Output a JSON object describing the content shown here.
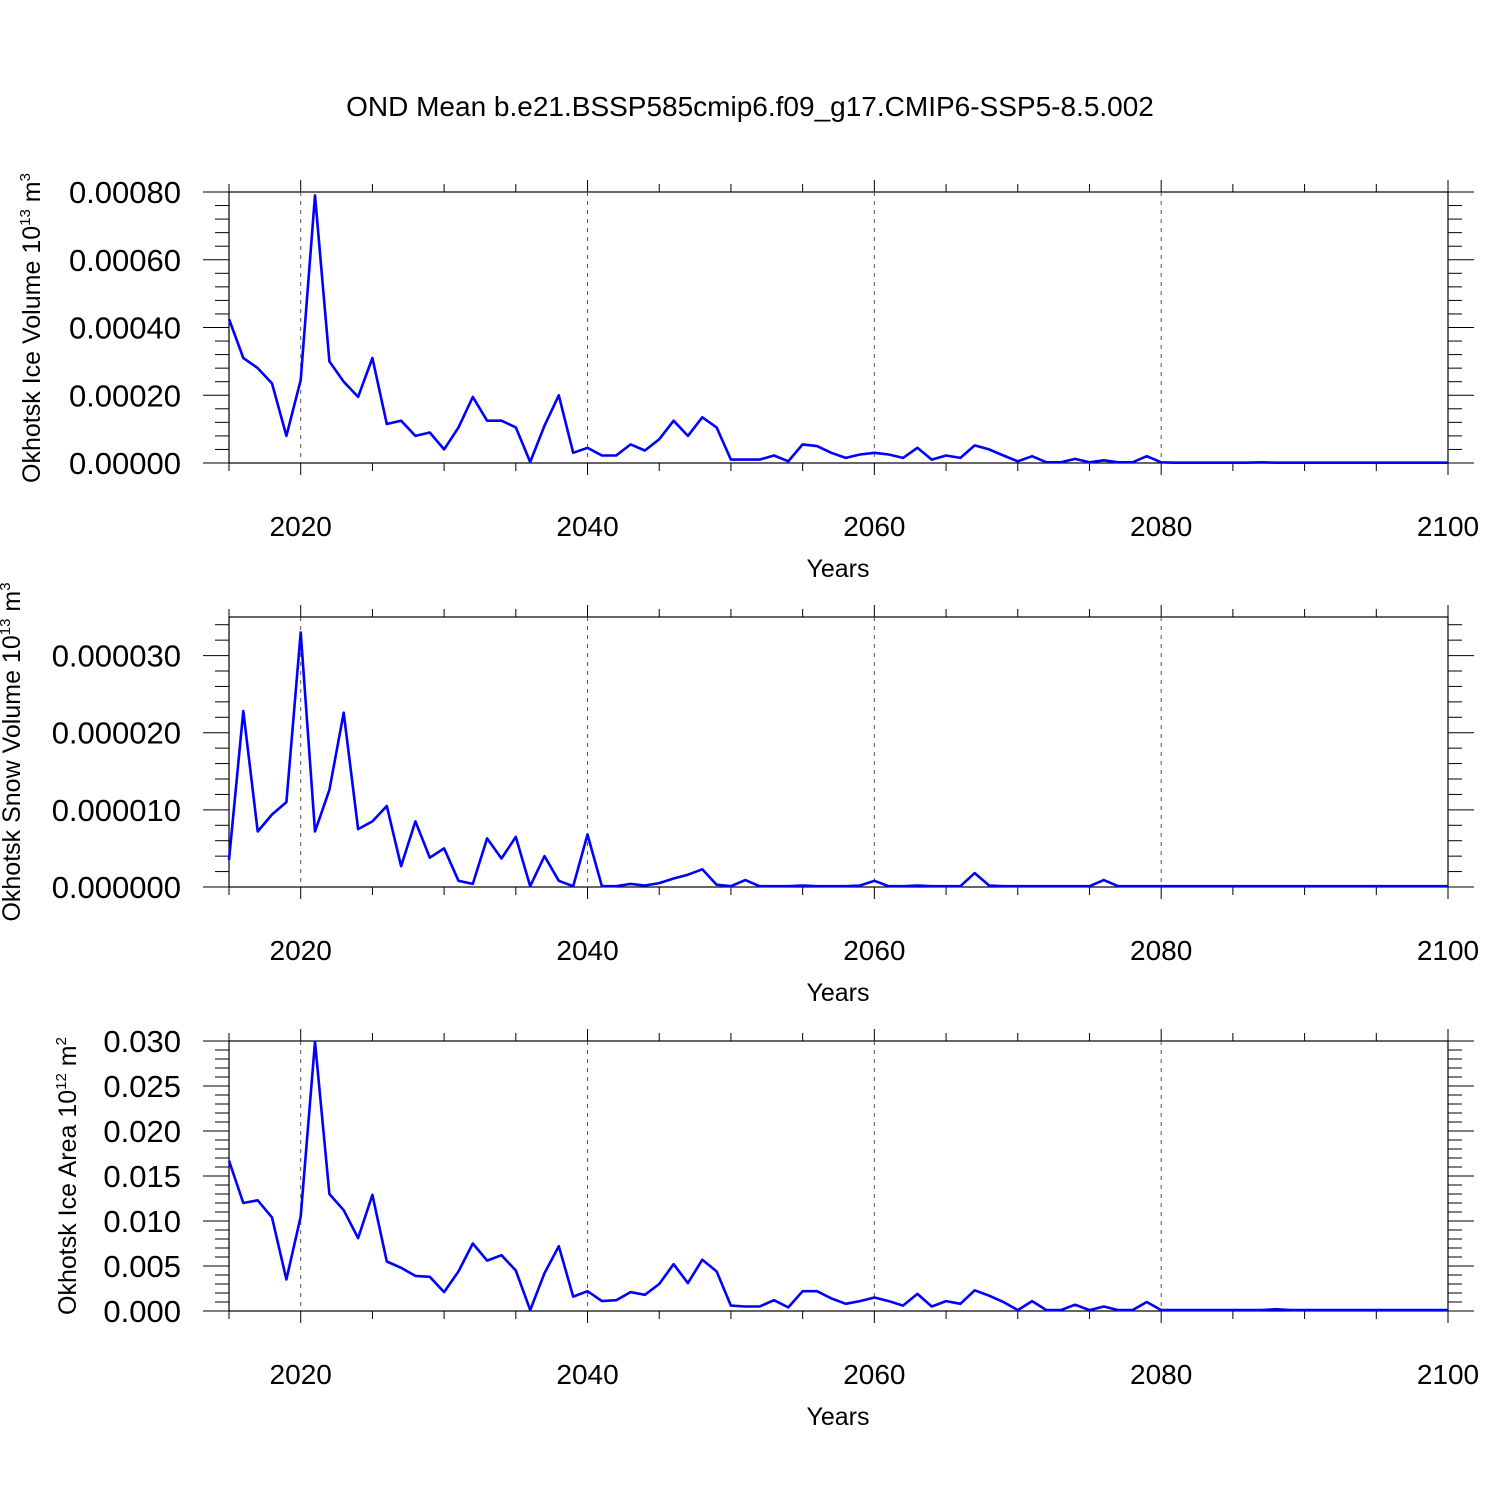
{
  "title": "OND Mean b.e21.BSSP585cmip6.f09_g17.CMIP6-SSP5-8.5.002",
  "line_color": "#0000ff",
  "chart_data": [
    {
      "type": "line",
      "name": "ice-volume",
      "ylabel_main": "Okhotsk Ice Volume 10",
      "ylabel_exp": "13",
      "ylabel_unit": " m",
      "ylabel_unit_exp": "3",
      "xlabel": "Years",
      "xlim": [
        2015,
        2100
      ],
      "ylim": [
        0,
        0.0008
      ],
      "x_ticks": [
        "2020",
        "2040",
        "2060",
        "2080",
        "2100"
      ],
      "y_ticks": [
        {
          "value": 0.0,
          "label": "0.00000"
        },
        {
          "value": 0.0002,
          "label": "0.00020"
        },
        {
          "value": 0.0004,
          "label": "0.00040"
        },
        {
          "value": 0.0006,
          "label": "0.00060"
        },
        {
          "value": 0.0008,
          "label": "0.00080"
        }
      ],
      "gridlines_x": [
        2020,
        2040,
        2060,
        2080
      ],
      "x_start": 2015,
      "values": [
        0.000425,
        0.00031,
        0.00028,
        0.000235,
        8e-05,
        0.000245,
        0.00079,
        0.0003,
        0.00024,
        0.000195,
        0.00031,
        0.000115,
        0.000125,
        8e-05,
        9e-05,
        4e-05,
        0.000105,
        0.000195,
        0.000125,
        0.000125,
        0.000105,
        3e-06,
        0.00011,
        0.0002,
        3e-05,
        4.5e-05,
        2.2e-05,
        2.2e-05,
        5.5e-05,
        3.7e-05,
        7e-05,
        0.000125,
        8e-05,
        0.000135,
        0.000105,
        1e-05,
        1e-05,
        1e-05,
        2.2e-05,
        5e-06,
        5.5e-05,
        5e-05,
        3e-05,
        1.5e-05,
        2.5e-05,
        3e-05,
        2.5e-05,
        1.5e-05,
        4.5e-05,
        1e-05,
        2.2e-05,
        1.5e-05,
        5.2e-05,
        4e-05,
        2.2e-05,
        5e-06,
        2e-05,
        2e-06,
        2e-06,
        1.2e-05,
        2e-06,
        8e-06,
        2e-06,
        2e-06,
        2e-05,
        2e-06,
        1e-06,
        1e-06,
        1e-06,
        1e-06,
        1e-06,
        1e-06,
        2e-06,
        1e-06,
        1e-06,
        1e-06,
        1e-06,
        1e-06,
        1e-06,
        1e-06,
        1e-06,
        1e-06,
        1e-06,
        1e-06,
        1e-06,
        1e-06
      ]
    },
    {
      "type": "line",
      "name": "snow-volume",
      "ylabel_main": "Okhotsk Snow Volume 10",
      "ylabel_exp": "13",
      "ylabel_unit": " m",
      "ylabel_unit_exp": "3",
      "xlabel": "Years",
      "xlim": [
        2015,
        2100
      ],
      "ylim": [
        0,
        3.5e-05
      ],
      "x_ticks": [
        "2020",
        "2040",
        "2060",
        "2080",
        "2100"
      ],
      "y_ticks": [
        {
          "value": 0.0,
          "label": "0.000000"
        },
        {
          "value": 1e-05,
          "label": "0.000010"
        },
        {
          "value": 2e-05,
          "label": "0.000020"
        },
        {
          "value": 3e-05,
          "label": "0.000030"
        }
      ],
      "gridlines_x": [
        2020,
        2040,
        2060,
        2080
      ],
      "x_start": 2015,
      "values": [
        3.5e-06,
        2.28e-05,
        7.2e-06,
        9.4e-06,
        1.1e-05,
        3.3e-05,
        7.2e-06,
        1.26e-05,
        2.26e-05,
        7.5e-06,
        8.5e-06,
        1.05e-05,
        2.7e-06,
        8.5e-06,
        3.8e-06,
        5e-06,
        8e-07,
        4e-07,
        6.3e-06,
        3.7e-06,
        6.5e-06,
        1e-07,
        4e-06,
        8e-07,
        1e-07,
        6.8e-06,
        1e-07,
        1e-07,
        4e-07,
        2e-07,
        5e-07,
        1.1e-06,
        1.6e-06,
        2.3e-06,
        3e-07,
        1e-07,
        9e-07,
        1e-07,
        1e-07,
        1e-07,
        2e-07,
        1e-07,
        1e-07,
        1e-07,
        2e-07,
        8e-07,
        1e-07,
        1e-07,
        2e-07,
        1e-07,
        1e-07,
        1e-07,
        1.8e-06,
        2e-07,
        1e-07,
        1e-07,
        1e-07,
        1e-07,
        1e-07,
        1e-07,
        1e-07,
        9e-07,
        1e-07,
        1e-07,
        1e-07,
        1e-07,
        1e-07,
        1e-07,
        1e-07,
        1e-07,
        1e-07,
        1e-07,
        1e-07,
        1e-07,
        1e-07,
        1e-07,
        1e-07,
        1e-07,
        1e-07,
        1e-07,
        1e-07,
        1e-07,
        1e-07,
        1e-07,
        1e-07,
        1e-07
      ]
    },
    {
      "type": "line",
      "name": "ice-area",
      "ylabel_main": "Okhotsk Ice Area 10",
      "ylabel_exp": "12",
      "ylabel_unit": " m",
      "ylabel_unit_exp": "2",
      "xlabel": "Years",
      "xlim": [
        2015,
        2100
      ],
      "ylim": [
        0,
        0.03
      ],
      "x_ticks": [
        "2020",
        "2040",
        "2060",
        "2080",
        "2100"
      ],
      "y_ticks": [
        {
          "value": 0.0,
          "label": "0.000"
        },
        {
          "value": 0.005,
          "label": "0.005"
        },
        {
          "value": 0.01,
          "label": "0.010"
        },
        {
          "value": 0.015,
          "label": "0.015"
        },
        {
          "value": 0.02,
          "label": "0.020"
        },
        {
          "value": 0.025,
          "label": "0.025"
        },
        {
          "value": 0.03,
          "label": "0.030"
        }
      ],
      "gridlines_x": [
        2020,
        2040,
        2060,
        2080
      ],
      "x_start": 2015,
      "values": [
        0.0167,
        0.012,
        0.0123,
        0.0104,
        0.0035,
        0.0105,
        0.0299,
        0.013,
        0.0112,
        0.0081,
        0.0129,
        0.0055,
        0.0048,
        0.0039,
        0.0038,
        0.0021,
        0.0044,
        0.0075,
        0.0056,
        0.0062,
        0.0045,
        0.0001,
        0.0042,
        0.0072,
        0.0016,
        0.0022,
        0.0011,
        0.0012,
        0.0021,
        0.0018,
        0.003,
        0.0052,
        0.0031,
        0.0057,
        0.0044,
        0.0006,
        0.0005,
        0.0005,
        0.0012,
        0.0004,
        0.0022,
        0.0022,
        0.0014,
        0.0008,
        0.0011,
        0.0015,
        0.0011,
        0.0006,
        0.0019,
        0.0005,
        0.0011,
        0.0008,
        0.0023,
        0.0017,
        0.001,
        0.0001,
        0.0011,
        0.0001,
        0.0001,
        0.0007,
        0.0001,
        0.0005,
        0.0001,
        0.0001,
        0.001,
        0.0001,
        0.0001,
        0.0001,
        0.0001,
        0.0001,
        0.0001,
        0.0001,
        0.0001,
        0.0002,
        0.0001,
        0.0001,
        0.0001,
        0.0001,
        0.0001,
        0.0001,
        0.0001,
        0.0001,
        0.0001,
        0.0001,
        0.0001,
        0.0001
      ]
    }
  ]
}
